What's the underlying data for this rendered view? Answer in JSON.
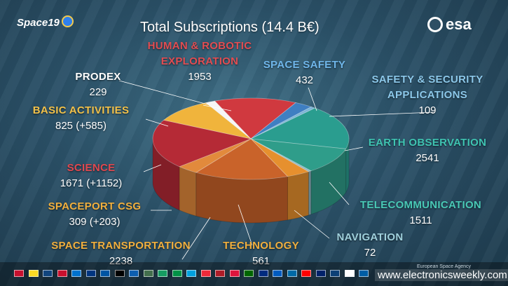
{
  "title": "Total Subscriptions (14.4 B€)",
  "logos": {
    "space19": "Space19",
    "esa": "esa"
  },
  "watermark": "www.electronicsweekly.com",
  "copyright": "European Space Agency",
  "colors": {
    "human_robotic": "#d0393f",
    "space_safety": "#3f7fc2",
    "safety_security": "#7bb4d6",
    "earth_observation": "#2a9d8f",
    "telecommunication": "#2f9d8a",
    "navigation": "#8fb7c2",
    "technology": "#e6902e",
    "space_transportation": "#c9632a",
    "spaceport": "#e28a3c",
    "science": "#b52a36",
    "basic": "#f0b43c",
    "prodex": "#f6f6f6"
  },
  "chart_data": {
    "type": "pie",
    "title": "Total Subscriptions (14.4 B€)",
    "slices": [
      {
        "label": "HUMAN & ROBOTIC EXPLORATION",
        "value": "1953",
        "numeric": 1953,
        "color_key": "human_robotic"
      },
      {
        "label": "SPACE SAFETY",
        "value": "432",
        "numeric": 432,
        "color_key": "space_safety"
      },
      {
        "label": "SAFETY & SECURITY APPLICATIONS",
        "value": "109",
        "numeric": 109,
        "color_key": "safety_security"
      },
      {
        "label": "EARTH OBSERVATION",
        "value": "2541",
        "numeric": 2541,
        "color_key": "earth_observation"
      },
      {
        "label": "TELECOMMUNICATION",
        "value": "1511",
        "numeric": 1511,
        "color_key": "telecommunication"
      },
      {
        "label": "NAVIGATION",
        "value": "72",
        "numeric": 72,
        "color_key": "navigation"
      },
      {
        "label": "TECHNOLOGY",
        "value": "561",
        "numeric": 561,
        "color_key": "technology"
      },
      {
        "label": "SPACE TRANSPORTATION",
        "value": "2238",
        "numeric": 2238,
        "color_key": "space_transportation"
      },
      {
        "label": "SPACEPORT CSG",
        "value": "309 (+203)",
        "numeric": 512,
        "color_key": "spaceport"
      },
      {
        "label": "SCIENCE",
        "value": "1671 (+1152)",
        "numeric": 2823,
        "color_key": "science"
      },
      {
        "label": "BASIC ACTIVITIES",
        "value": "825 (+585)",
        "numeric": 1410,
        "color_key": "basic"
      },
      {
        "label": "PRODEX",
        "value": "229",
        "numeric": 229,
        "color_key": "prodex"
      }
    ]
  },
  "labels": {
    "human": {
      "line1": "HUMAN & ROBOTIC",
      "line2": "EXPLORATION",
      "value": "1953"
    },
    "space_safety": {
      "name": "SPACE SAFETY",
      "value": "432"
    },
    "safety_security": {
      "line1": "SAFETY & SECURITY",
      "line2": "APPLICATIONS",
      "value": "109"
    },
    "earth": {
      "name": "EARTH OBSERVATION",
      "value": "2541"
    },
    "telecom": {
      "name": "TELECOMMUNICATION",
      "value": "1511"
    },
    "navigation": {
      "name": "NAVIGATION",
      "value": "72"
    },
    "technology": {
      "name": "TECHNOLOGY",
      "value": "561"
    },
    "transport": {
      "name": "SPACE TRANSPORTATION",
      "value": "2238"
    },
    "spaceport": {
      "name": "SPACEPORT CSG",
      "value": "309 (+203)"
    },
    "science": {
      "name": "SCIENCE",
      "value": "1671 (+1152)"
    },
    "basic": {
      "name": "BASIC ACTIVITIES",
      "value": "825 (+585)"
    },
    "prodex": {
      "name": "PRODEX",
      "value": "229"
    }
  },
  "flags": [
    "#c8102e",
    "#fdda24",
    "#11457e",
    "#c8102e",
    "#0072ce",
    "#003580",
    "#0055a4",
    "#000000",
    "#0d5eaf",
    "#436f4d",
    "#169b62",
    "#009246",
    "#00a1de",
    "#ed2939",
    "#ae1c28",
    "#dc143c",
    "#006600",
    "#002b7f",
    "#005bbf",
    "#006aa7",
    "#ff0000",
    "#012169",
    "#0c4076",
    "#ffffff",
    "#005da4"
  ]
}
